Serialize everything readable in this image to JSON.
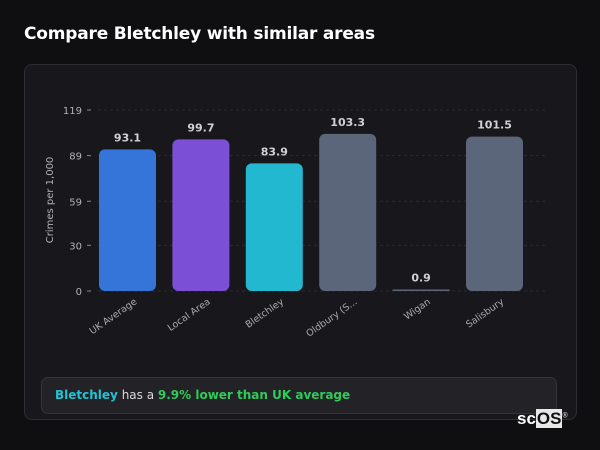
{
  "title": "Compare Bletchley with similar areas",
  "chart_data": {
    "type": "bar",
    "title": "",
    "xlabel": "",
    "ylabel": "Crimes per 1,000",
    "ylim": [
      0,
      119
    ],
    "yticks": [
      0,
      30,
      59,
      89,
      119
    ],
    "ytick_labels": [
      "0",
      "30",
      "59",
      "89",
      "119"
    ],
    "grid": true,
    "categories": [
      "UK Average",
      "Local Area",
      "Bletchley",
      "Oldbury (S...",
      "Wigan",
      "Salisbury"
    ],
    "values": [
      93.1,
      99.7,
      83.9,
      103.3,
      0.9,
      101.5
    ],
    "value_labels": [
      "93.1",
      "99.7",
      "83.9",
      "103.3",
      "0.9",
      "101.5"
    ],
    "colors": [
      "#3574d9",
      "#7b4fd6",
      "#22b8cf",
      "#5b667a",
      "#5b667a",
      "#5b667a"
    ]
  },
  "summary": {
    "area": "Bletchley",
    "middle": " has a ",
    "comparison": "9.9% lower than UK average",
    "area_color": "#22c3d2",
    "comparison_color": "#2ecc5a"
  },
  "logo": {
    "text_plain": "sc",
    "text_boxed": "OS",
    "mark": "®"
  }
}
